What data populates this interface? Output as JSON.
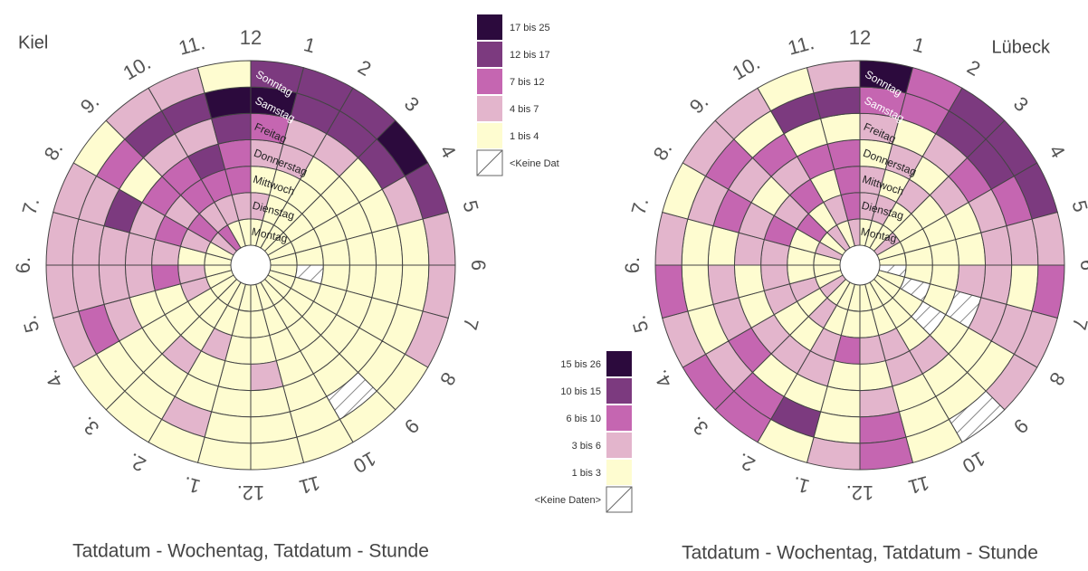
{
  "chart_data": [
    {
      "type": "radial_heatmap",
      "title": "Kiel",
      "x_label": "Tatdatum - Wochentag, Tatdatum - Stunde",
      "categories": [
        "12",
        "1",
        "2",
        "3",
        "4",
        "5",
        "6",
        "7",
        "8",
        "9",
        "10",
        "11",
        "12.",
        "1.",
        "2.",
        "3.",
        "4.",
        "5.",
        "6.",
        "7.",
        "8.",
        "9.",
        "10.",
        "11."
      ],
      "legend": {
        "labels": [
          "1 bis 4",
          "4 bis 7",
          "7 bis 12",
          "12 bis 17",
          "17 bis 25"
        ],
        "bins": [
          1,
          4,
          7,
          12,
          17,
          25
        ],
        "colors": [
          "#fefcd0",
          "#e3b5cc",
          "#c566b1",
          "#7c3a7f",
          "#2c0a3d"
        ],
        "no_data_label": "<Keine Dat"
      },
      "series": [
        {
          "name": "Montag",
          "values": [
            2,
            2,
            2,
            2,
            2,
            2,
            2,
            2,
            2,
            2,
            2,
            2,
            2,
            2,
            2,
            2,
            2,
            2,
            2,
            2,
            5,
            9,
            2,
            2
          ]
        },
        {
          "name": "Dienstag",
          "values": [
            5,
            2,
            2,
            2,
            2,
            2,
            null,
            2,
            2,
            2,
            2,
            2,
            2,
            2,
            2,
            2,
            5,
            5,
            2,
            5,
            9,
            5,
            5,
            5
          ]
        },
        {
          "name": "Mittwoch",
          "values": [
            2,
            2,
            2,
            2,
            2,
            2,
            2,
            2,
            2,
            2,
            2,
            2,
            2,
            5,
            2,
            2,
            2,
            9,
            5,
            9,
            5,
            9,
            9,
            9
          ]
        },
        {
          "name": "Donnerstag",
          "values": [
            5,
            5,
            2,
            2,
            2,
            2,
            2,
            2,
            2,
            2,
            2,
            5,
            2,
            2,
            5,
            2,
            2,
            5,
            5,
            5,
            9,
            9,
            14,
            9
          ]
        },
        {
          "name": "Freitag",
          "values": [
            9,
            5,
            5,
            2,
            2,
            2,
            2,
            2,
            2,
            2,
            2,
            2,
            2,
            2,
            2,
            2,
            5,
            5,
            5,
            14,
            2,
            5,
            5,
            14
          ]
        },
        {
          "name": "Samstag",
          "values": [
            20,
            14,
            14,
            14,
            5,
            2,
            2,
            2,
            2,
            null,
            2,
            2,
            2,
            5,
            2,
            2,
            9,
            5,
            5,
            5,
            9,
            14,
            14,
            20
          ]
        },
        {
          "name": "Sonntag",
          "values": [
            14,
            14,
            14,
            20,
            14,
            5,
            5,
            5,
            2,
            2,
            2,
            2,
            2,
            2,
            2,
            2,
            5,
            5,
            5,
            5,
            2,
            5,
            5,
            2
          ]
        }
      ]
    },
    {
      "type": "radial_heatmap",
      "title": "Lübeck",
      "x_label": "Tatdatum - Wochentag, Tatdatum - Stunde",
      "categories": [
        "12",
        "1",
        "2",
        "3",
        "4",
        "5",
        "6",
        "7",
        "8",
        "9",
        "10",
        "11",
        "12.",
        "1.",
        "2.",
        "3.",
        "4.",
        "5.",
        "6.",
        "7.",
        "8.",
        "9.",
        "10.",
        "11."
      ],
      "legend": {
        "labels": [
          "1 bis 3",
          "3 bis 6",
          "6 bis 10",
          "10 bis 15",
          "15 bis 26"
        ],
        "bins": [
          1,
          3,
          6,
          10,
          15,
          26
        ],
        "colors": [
          "#fefcd0",
          "#e3b5cc",
          "#c566b1",
          "#7c3a7f",
          "#2c0a3d"
        ],
        "no_data_label": "<Keine Daten>"
      },
      "series": [
        {
          "name": "Montag",
          "values": [
            2,
            2,
            2,
            4,
            2,
            2,
            null,
            2,
            2,
            2,
            2,
            2,
            2,
            2,
            2,
            4,
            2,
            2,
            2,
            4,
            2,
            4,
            2,
            4
          ]
        },
        {
          "name": "Dienstag",
          "values": [
            4,
            4,
            2,
            2,
            2,
            2,
            2,
            null,
            2,
            2,
            2,
            2,
            2,
            2,
            4,
            2,
            4,
            2,
            2,
            2,
            8,
            2,
            4,
            8
          ]
        },
        {
          "name": "Mittwoch",
          "values": [
            4,
            2,
            4,
            2,
            2,
            2,
            2,
            2,
            null,
            2,
            4,
            4,
            8,
            4,
            2,
            2,
            4,
            4,
            4,
            8,
            4,
            8,
            2,
            8
          ]
        },
        {
          "name": "Donnerstag",
          "values": [
            2,
            4,
            2,
            4,
            2,
            2,
            4,
            null,
            2,
            4,
            4,
            2,
            2,
            4,
            4,
            4,
            2,
            2,
            4,
            4,
            2,
            4,
            8,
            8
          ]
        },
        {
          "name": "Freitag",
          "values": [
            4,
            2,
            4,
            8,
            4,
            4,
            4,
            4,
            2,
            2,
            2,
            4,
            2,
            2,
            2,
            8,
            4,
            4,
            2,
            8,
            4,
            8,
            2,
            2
          ]
        },
        {
          "name": "Samstag",
          "values": [
            8,
            8,
            12,
            12,
            8,
            4,
            2,
            4,
            2,
            2,
            2,
            8,
            2,
            12,
            8,
            4,
            2,
            2,
            2,
            4,
            8,
            2,
            12,
            12
          ]
        },
        {
          "name": "Sonntag",
          "values": [
            20,
            8,
            12,
            12,
            12,
            4,
            8,
            4,
            4,
            null,
            2,
            8,
            4,
            2,
            8,
            8,
            4,
            8,
            4,
            2,
            4,
            4,
            2,
            4
          ]
        }
      ]
    }
  ]
}
